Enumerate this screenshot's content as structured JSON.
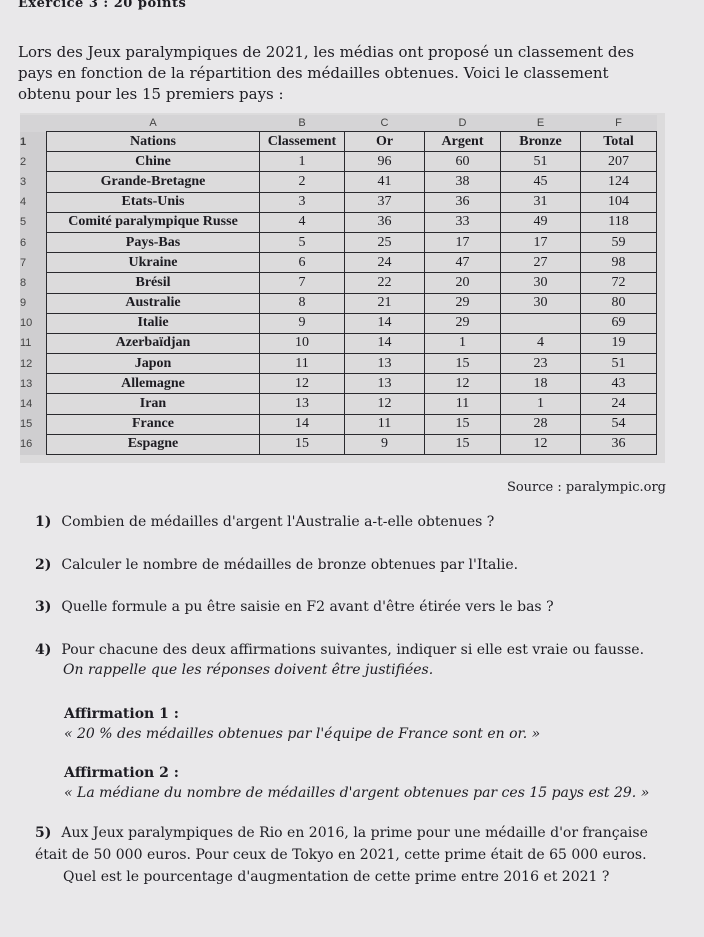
{
  "header": "Exercice 3 : 20 points",
  "intro": "Lors des Jeux paralympiques de 2021, les médias ont proposé un classement des pays en fonction de la répartition des médailles obtenues. Voici le classement obtenu pour les 15 premiers pays :",
  "table": {
    "column_letters": [
      "A",
      "B",
      "C",
      "D",
      "E",
      "F"
    ],
    "headers": [
      "Nations",
      "Classement",
      "Or",
      "Argent",
      "Bronze",
      "Total"
    ],
    "rows": [
      [
        "Chine",
        "1",
        "96",
        "60",
        "51",
        "207"
      ],
      [
        "Grande-Bretagne",
        "2",
        "41",
        "38",
        "45",
        "124"
      ],
      [
        "Etats-Unis",
        "3",
        "37",
        "36",
        "31",
        "104"
      ],
      [
        "Comité paralympique Russe",
        "4",
        "36",
        "33",
        "49",
        "118"
      ],
      [
        "Pays-Bas",
        "5",
        "25",
        "17",
        "17",
        "59"
      ],
      [
        "Ukraine",
        "6",
        "24",
        "47",
        "27",
        "98"
      ],
      [
        "Brésil",
        "7",
        "22",
        "20",
        "30",
        "72"
      ],
      [
        "Australie",
        "8",
        "21",
        "29",
        "30",
        "80"
      ],
      [
        "Italie",
        "9",
        "14",
        "29",
        "",
        "69"
      ],
      [
        "Azerbaïdjan",
        "10",
        "14",
        "1",
        "4",
        "19"
      ],
      [
        "Japon",
        "11",
        "13",
        "15",
        "23",
        "51"
      ],
      [
        "Allemagne",
        "12",
        "13",
        "12",
        "18",
        "43"
      ],
      [
        "Iran",
        "13",
        "12",
        "11",
        "1",
        "24"
      ],
      [
        "France",
        "14",
        "11",
        "15",
        "28",
        "54"
      ],
      [
        "Espagne",
        "15",
        "9",
        "15",
        "12",
        "36"
      ]
    ]
  },
  "source": "Source : paralympic.org",
  "questions": [
    {
      "num": "1)",
      "text": "Combien de médailles d'argent l'Australie a-t-elle obtenues ?"
    },
    {
      "num": "2)",
      "text": "Calculer le nombre de médailles de bronze obtenues par l'Italie."
    },
    {
      "num": "3)",
      "text": "Quelle formule a pu être saisie en F2 avant d'être étirée vers le bas ?"
    },
    {
      "num": "4)",
      "text": "Pour chacune des deux affirmations suivantes, indiquer si elle est vraie ou fausse.",
      "note": "On rappelle que les réponses doivent être justifiées."
    },
    {
      "num": "5)",
      "text": "Aux Jeux paralympiques de Rio en 2016, la prime pour une médaille d'or française était de 50 000 euros. Pour ceux de Tokyo en 2021, cette prime était de 65 000 euros.",
      "text2": "Quel est le pourcentage d'augmentation de cette prime entre 2016 et 2021 ?"
    }
  ],
  "affirmations": [
    {
      "label": "Affirmation 1 :",
      "text": "« 20 % des médailles obtenues par l'équipe de France sont en or. »"
    },
    {
      "label": "Affirmation 2 :",
      "text": "« La médiane du nombre de médailles d'argent obtenues par ces 15 pays est 29. »"
    }
  ]
}
